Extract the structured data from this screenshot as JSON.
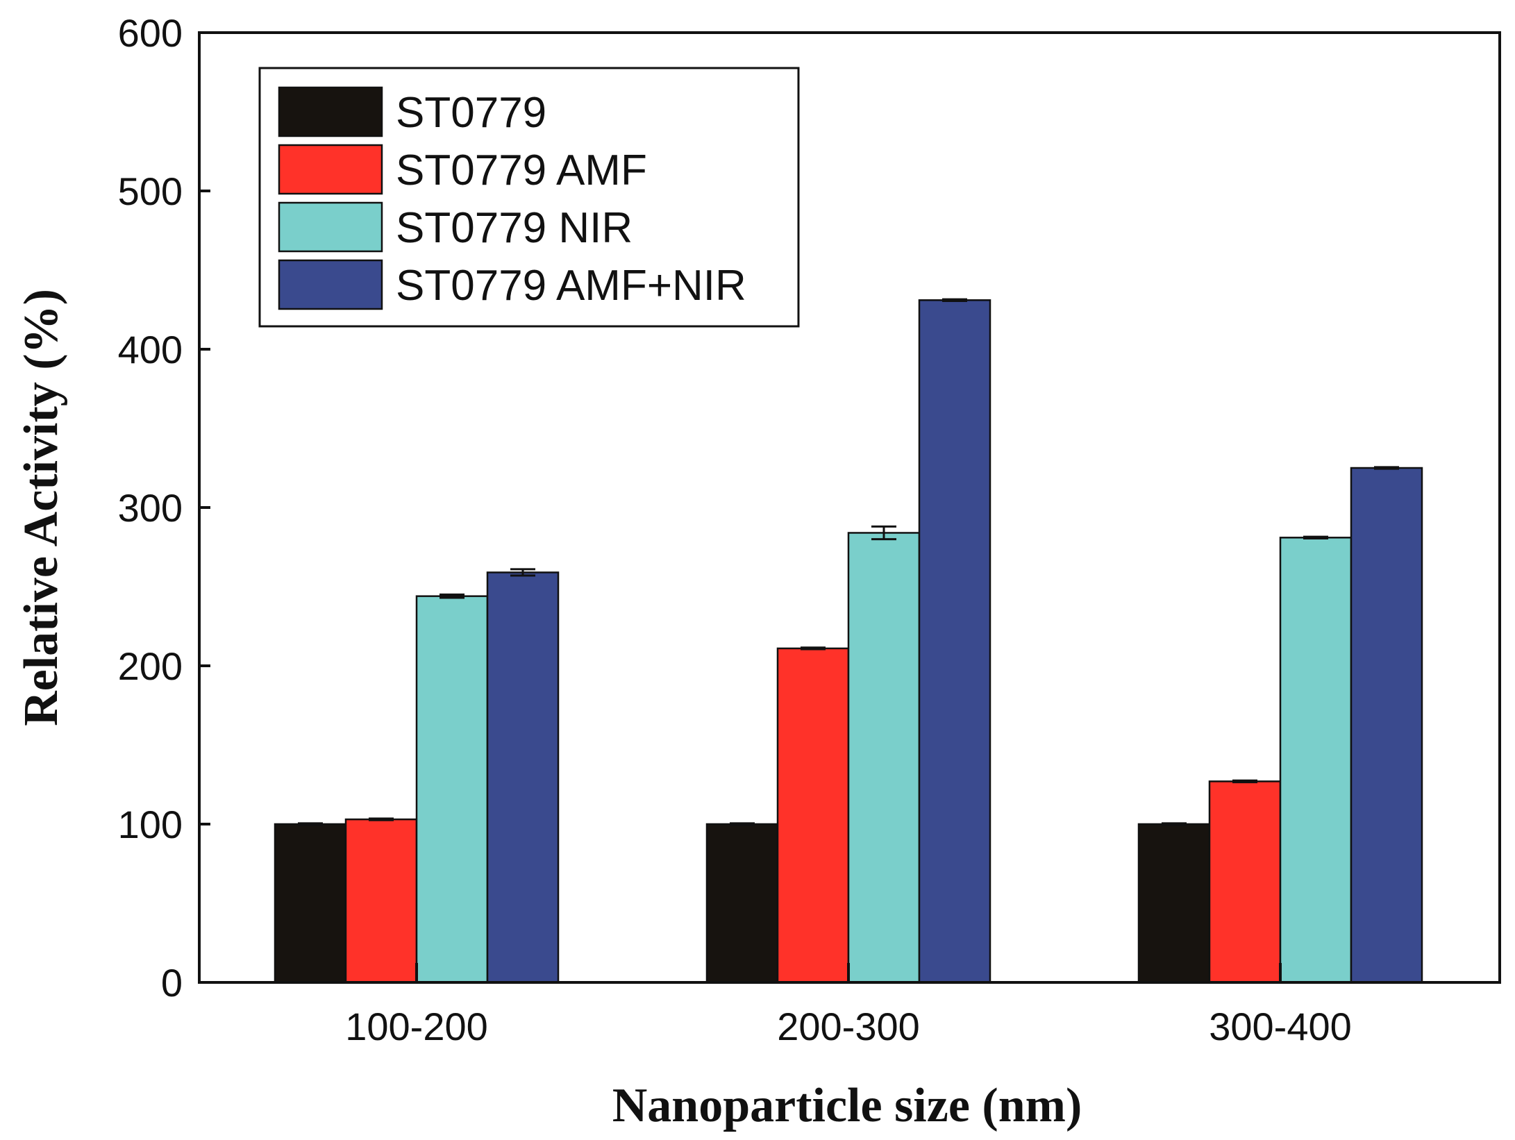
{
  "chart_data": {
    "type": "bar",
    "title": "",
    "xlabel": "Nanoparticle size (nm)",
    "ylabel": "Relative Activity (%)",
    "ylim": [
      0,
      600
    ],
    "yticks": [
      "0",
      "100",
      "200",
      "300",
      "400",
      "500",
      "600"
    ],
    "categories": [
      "100-200",
      "200-300",
      "300-400"
    ],
    "legend_position": "top-left",
    "series": [
      {
        "name": "ST0779",
        "color": "#17130f",
        "values": [
          100,
          100,
          100
        ],
        "errors": [
          0.5,
          0.5,
          0.5
        ]
      },
      {
        "name": "ST0779 AMF",
        "color": "#ff3229",
        "values": [
          103,
          211,
          127
        ],
        "errors": [
          0.5,
          0.5,
          0.5
        ]
      },
      {
        "name": "ST0779 NIR",
        "color": "#7acfcb",
        "values": [
          244,
          284,
          281
        ],
        "errors": [
          1,
          4,
          0.5
        ]
      },
      {
        "name": "ST0779 AMF+NIR",
        "color": "#3a4a8e",
        "values": [
          259,
          431,
          325
        ],
        "errors": [
          2,
          0.5,
          0.5
        ]
      }
    ]
  }
}
